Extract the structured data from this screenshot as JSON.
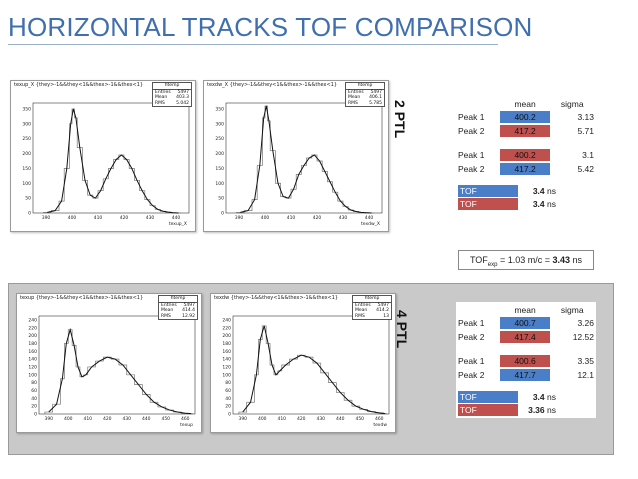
{
  "title": "HORIZONTAL TRACKS TOF COMPARISON",
  "colors": {
    "blue": "#4a7ec8",
    "red": "#c0504d",
    "title": "#3f6fae"
  },
  "sections": [
    {
      "side_label": "2 PTL",
      "plots": [
        {
          "hist_title": "texup_X {they>-1&&they<1&&thex>-1&&thex<1}",
          "stat_name": "htemp",
          "entries": "5497",
          "mean": "403.3",
          "rms": "5.042",
          "rms_label": "RMS",
          "xlabel": "texup_X",
          "yticks": [
            "350",
            "300",
            "250",
            "200",
            "150",
            "100",
            "50",
            "0"
          ],
          "xticks": [
            "390",
            "400",
            "410",
            "420",
            "430",
            "440"
          ]
        },
        {
          "hist_title": "texdw_X {they>-1&&they<1&&thex>-1&&thex<1}",
          "stat_name": "htemp",
          "entries": "5497",
          "mean": "406.1",
          "rms": "5.785",
          "rms_label": "RMS",
          "xlabel": "texdw_X",
          "yticks": [
            "350",
            "300",
            "250",
            "200",
            "150",
            "100",
            "50",
            "0"
          ],
          "xticks": [
            "390",
            "400",
            "410",
            "420",
            "430",
            "440"
          ]
        }
      ],
      "table": {
        "head_mean": "mean",
        "head_sigma": "sigma",
        "rows": [
          {
            "label": "Peak 1",
            "mean": "400.2",
            "sigma": "3.13",
            "color": "blue"
          },
          {
            "label": "Peak 2",
            "mean": "417.2",
            "sigma": "5.71",
            "color": "red"
          },
          {
            "label": "Peak 1",
            "mean": "400.2",
            "sigma": "3.1",
            "color": "red"
          },
          {
            "label": "Peak 2",
            "mean": "417.2",
            "sigma": "5.42",
            "color": "blue"
          }
        ],
        "tof": [
          {
            "label": "TOF",
            "value": "3.4",
            "unit": "ns",
            "color": "blue"
          },
          {
            "label": "TOF",
            "value": "3.4",
            "unit": "ns",
            "color": "red"
          }
        ]
      }
    },
    {
      "side_label": "4 PTL",
      "plots": [
        {
          "hist_title": "texup {they>-1&&they<1&&thex>-1&&thex<1}",
          "stat_name": "htemp",
          "entries": "5497",
          "mean": "414.4",
          "rms": "12.92",
          "rms_label": "RMS",
          "xlabel": "texup",
          "yticks": [
            "240",
            "220",
            "200",
            "180",
            "160",
            "140",
            "120",
            "100",
            "80",
            "60",
            "40",
            "20",
            "0"
          ],
          "xticks": [
            "390",
            "400",
            "410",
            "420",
            "430",
            "440",
            "450",
            "460"
          ]
        },
        {
          "hist_title": "texdw {they>-1&&they<1&&thex>-1&&thex<1}",
          "stat_name": "htemp",
          "entries": "5497",
          "mean": "414.2",
          "rms": "13",
          "rms_label": "RMS",
          "xlabel": "texdw",
          "yticks": [
            "240",
            "220",
            "200",
            "180",
            "160",
            "140",
            "120",
            "100",
            "80",
            "60",
            "40",
            "20",
            "0"
          ],
          "xticks": [
            "390",
            "400",
            "410",
            "420",
            "430",
            "440",
            "450",
            "460"
          ]
        }
      ],
      "table": {
        "head_mean": "mean",
        "head_sigma": "sigma",
        "rows": [
          {
            "label": "Peak 1",
            "mean": "400.7",
            "sigma": "3.26",
            "color": "blue"
          },
          {
            "label": "Peak 2",
            "mean": "417.4",
            "sigma": "12.52",
            "color": "red"
          },
          {
            "label": "Peak 1",
            "mean": "400.6",
            "sigma": "3.35",
            "color": "red"
          },
          {
            "label": "Peak 2",
            "mean": "417.7",
            "sigma": "12.1",
            "color": "blue"
          }
        ],
        "tof": [
          {
            "label": "TOF",
            "value": "3.4",
            "unit": "ns",
            "color": "blue"
          },
          {
            "label": "TOF",
            "value": "3.36",
            "unit": "ns",
            "color": "red"
          }
        ]
      }
    }
  ],
  "formula": {
    "prefix": "TOF",
    "sub": "exp",
    "middle": " = 1.03 m/c = ",
    "value": "3.43",
    "unit": " ns"
  },
  "chart_data": [
    {
      "type": "bar",
      "title": "texup_X {they>-1&&they<1&&thex>-1&&thex<1}",
      "xlabel": "texup_X",
      "ylabel": "",
      "xlim": [
        385,
        445
      ],
      "ylim": [
        0,
        370
      ],
      "x": [
        389,
        392,
        395,
        397,
        399,
        400,
        401,
        402,
        404,
        406,
        408,
        410,
        412,
        414,
        416,
        418,
        420,
        422,
        424,
        426,
        428,
        430,
        432,
        434,
        436,
        438,
        440
      ],
      "values": [
        2,
        8,
        40,
        150,
        300,
        350,
        320,
        220,
        110,
        60,
        50,
        75,
        115,
        150,
        180,
        195,
        180,
        150,
        110,
        75,
        45,
        25,
        12,
        6,
        3,
        1,
        0
      ]
    },
    {
      "type": "bar",
      "title": "texdw_X {they>-1&&they<1&&thex>-1&&thex<1}",
      "xlabel": "texdw_X",
      "ylabel": "",
      "xlim": [
        385,
        445
      ],
      "ylim": [
        0,
        370
      ],
      "x": [
        389,
        392,
        395,
        397,
        399,
        400,
        401,
        402,
        404,
        406,
        408,
        410,
        412,
        414,
        416,
        418,
        420,
        422,
        424,
        426,
        428,
        430,
        432,
        434,
        436,
        438,
        440
      ],
      "values": [
        2,
        8,
        45,
        160,
        320,
        360,
        310,
        210,
        100,
        55,
        50,
        80,
        130,
        160,
        185,
        195,
        175,
        140,
        105,
        70,
        40,
        22,
        10,
        5,
        2,
        1,
        0
      ]
    },
    {
      "type": "bar",
      "title": "texup {they>-1&&they<1&&thex>-1&&thex<1}",
      "xlabel": "texup",
      "ylabel": "",
      "xlim": [
        385,
        465
      ],
      "ylim": [
        0,
        250
      ],
      "x": [
        388,
        392,
        396,
        398,
        400,
        402,
        404,
        406,
        408,
        410,
        414,
        418,
        422,
        426,
        430,
        434,
        438,
        442,
        446,
        450,
        454,
        458,
        462
      ],
      "values": [
        5,
        25,
        90,
        180,
        215,
        175,
        120,
        95,
        100,
        120,
        135,
        145,
        140,
        125,
        100,
        75,
        50,
        30,
        18,
        10,
        5,
        2,
        1
      ]
    },
    {
      "type": "bar",
      "title": "texdw {they>-1&&they<1&&thex>-1&&thex<1}",
      "xlabel": "texdw",
      "ylabel": "",
      "xlim": [
        385,
        465
      ],
      "ylim": [
        0,
        250
      ],
      "x": [
        388,
        392,
        396,
        398,
        400,
        402,
        404,
        406,
        408,
        410,
        414,
        418,
        422,
        426,
        430,
        434,
        438,
        442,
        446,
        450,
        454,
        458,
        462
      ],
      "values": [
        5,
        30,
        100,
        190,
        225,
        180,
        125,
        100,
        110,
        125,
        140,
        150,
        145,
        130,
        105,
        80,
        55,
        35,
        20,
        12,
        6,
        3,
        1
      ]
    }
  ]
}
